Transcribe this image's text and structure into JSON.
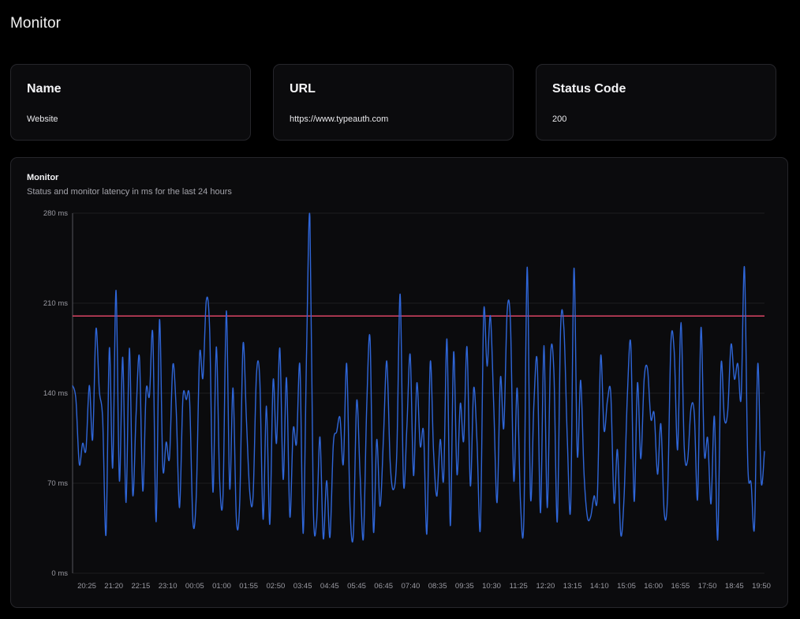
{
  "page": {
    "title": "Monitor"
  },
  "cards": [
    {
      "label": "Name",
      "value": "Website"
    },
    {
      "label": "URL",
      "value": "https://www.typeauth.com"
    },
    {
      "label": "Status Code",
      "value": "200"
    }
  ],
  "chart": {
    "title": "Monitor",
    "subtitle": "Status and monitor latency in ms for the last 24 hours"
  },
  "colors": {
    "line": "#2f66d8",
    "threshold": "#d94463",
    "grid": "#1c1c20",
    "axis": "#55555c"
  },
  "chart_data": {
    "type": "line",
    "ylim": [
      0,
      280
    ],
    "yticks": [
      0,
      70,
      140,
      210,
      280
    ],
    "ytick_labels": [
      "0 ms",
      "70 ms",
      "140 ms",
      "210 ms",
      "280 ms"
    ],
    "xtick_labels": [
      "20:25",
      "21:20",
      "22:15",
      "23:10",
      "00:05",
      "01:00",
      "01:55",
      "02:50",
      "03:45",
      "04:45",
      "05:45",
      "06:45",
      "07:40",
      "08:35",
      "09:35",
      "10:30",
      "11:25",
      "12:20",
      "13:15",
      "14:10",
      "15:05",
      "16:00",
      "16:55",
      "17:50",
      "18:45",
      "19:50"
    ],
    "threshold": 200,
    "grid": true,
    "series": [
      {
        "values": [
          146,
          135,
          85,
          101,
          96,
          146,
          104,
          190,
          142,
          120,
          30,
          175,
          82,
          220,
          72,
          168,
          55,
          175,
          61,
          124,
          168,
          64,
          142,
          138,
          186,
          40,
          197,
          82,
          102,
          90,
          162,
          127,
          51,
          136,
          135,
          135,
          40,
          60,
          170,
          152,
          212,
          190,
          63,
          176,
          72,
          60,
          204,
          66,
          144,
          42,
          55,
          178,
          120,
          63,
          60,
          154,
          151,
          42,
          130,
          38,
          150,
          101,
          175,
          73,
          152,
          44,
          112,
          101,
          162,
          31,
          172,
          277,
          54,
          40,
          106,
          27,
          72,
          28,
          100,
          110,
          121,
          85,
          163,
          51,
          30,
          134,
          77,
          27,
          130,
          182,
          33,
          104,
          52,
          105,
          165,
          87,
          65,
          94,
          217,
          70,
          113,
          170,
          76,
          148,
          99,
          110,
          31,
          164,
          94,
          60,
          104,
          73,
          182,
          37,
          172,
          77,
          132,
          103,
          176,
          68,
          144,
          102,
          35,
          203,
          161,
          200,
          130,
          55,
          152,
          113,
          203,
          195,
          72,
          144,
          55,
          41,
          238,
          59,
          131,
          165,
          47,
          177,
          51,
          169,
          156,
          40,
          190,
          190,
          105,
          51,
          237,
          92,
          150,
          78,
          44,
          44,
          60,
          60,
          169,
          111,
          134,
          140,
          55,
          96,
          30,
          60,
          140,
          178,
          56,
          148,
          89,
          151,
          159,
          120,
          124,
          77,
          116,
          47,
          60,
          179,
          172,
          96,
          195,
          97,
          88,
          128,
          124,
          58,
          191,
          93,
          105,
          54,
          122,
          26,
          162,
          120,
          126,
          178,
          151,
          163,
          136,
          238,
          85,
          70,
          36,
          163,
          71,
          95
        ]
      }
    ]
  }
}
